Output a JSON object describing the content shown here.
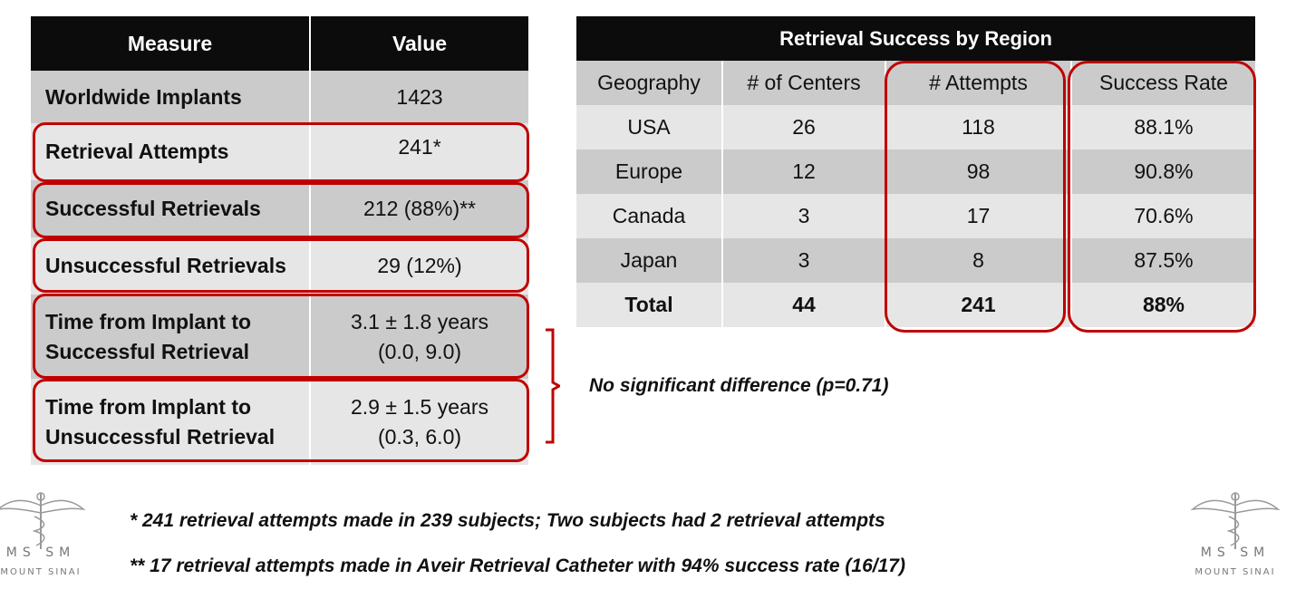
{
  "left_table": {
    "headers": [
      "Measure",
      "Value"
    ],
    "rows": [
      {
        "measure": [
          "Worldwide Implants"
        ],
        "value": [
          "1423"
        ]
      },
      {
        "measure": [
          "Retrieval Attempts"
        ],
        "value": [
          "241*"
        ]
      },
      {
        "measure": [
          "Successful Retrievals"
        ],
        "value": [
          "212 (88%)**"
        ]
      },
      {
        "measure": [
          "Unsuccessful Retrievals"
        ],
        "value": [
          "29 (12%)"
        ]
      },
      {
        "measure": [
          "Time from Implant to",
          "Successful Retrieval"
        ],
        "value": [
          "3.1 ± 1.8 years",
          "(0.0, 9.0)"
        ]
      },
      {
        "measure": [
          "Time from Implant to",
          "Unsuccessful Retrieval"
        ],
        "value": [
          "2.9 ± 1.5 years",
          "(0.3, 6.0)"
        ]
      }
    ]
  },
  "right_table": {
    "title": "Retrieval Success by Region",
    "headers": [
      "Geography",
      "# of Centers",
      "# Attempts",
      "Success Rate"
    ],
    "rows": [
      [
        "USA",
        "26",
        "118",
        "88.1%"
      ],
      [
        "Europe",
        "12",
        "98",
        "90.8%"
      ],
      [
        "Canada",
        "3",
        "17",
        "70.6%"
      ],
      [
        "Japan",
        "3",
        "8",
        "87.5%"
      ],
      [
        "Total",
        "44",
        "241",
        "88%"
      ]
    ]
  },
  "annotation": "No significant difference (p=0.71)",
  "footnotes": [
    "* 241 retrieval attempts made in 239 subjects; Two subjects had 2 retrieval attempts",
    "** 17 retrieval attempts made in Aveir Retrieval Catheter with 94% success rate (16/17)"
  ],
  "logo": {
    "letters": "MS  SM",
    "name": "MOUNT SINAI"
  },
  "colors": {
    "header_bg": "#0c0c0c",
    "highlight": "#c00000",
    "row_dark": "#cbcbcb",
    "row_light": "#e6e6e6"
  }
}
